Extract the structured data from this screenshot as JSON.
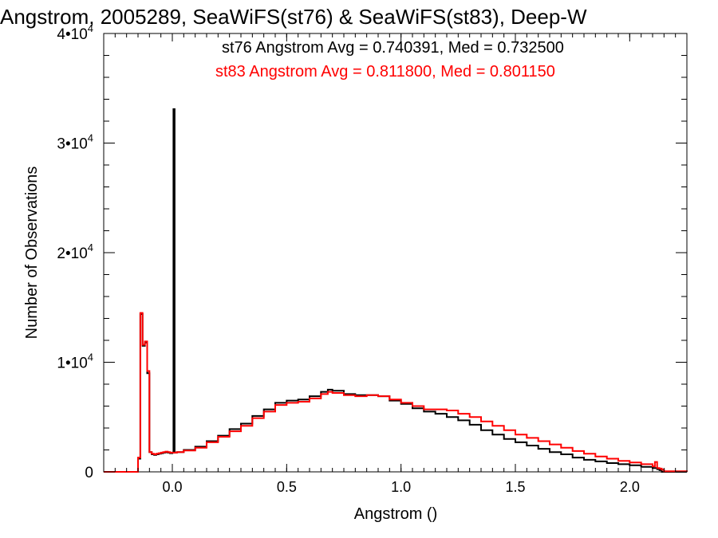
{
  "chart_data": {
    "type": "line",
    "title": "Angstrom, 2005289, SeaWiFS(st76) & SeaWiFS(st83), Deep-W",
    "xlabel": "Angstrom ()",
    "ylabel": "Number of Observations",
    "xlim": [
      -0.3,
      2.25
    ],
    "ylim": [
      0,
      40000
    ],
    "x_ticks": [
      0.0,
      0.5,
      1.0,
      1.5,
      2.0
    ],
    "x_tick_labels": [
      "0.0",
      "0.5",
      "1.0",
      "1.5",
      "2.0"
    ],
    "y_ticks": [
      0,
      10000,
      20000,
      30000,
      40000
    ],
    "y_tick_labels": [
      {
        "mantissa": "0",
        "exponent": ""
      },
      {
        "mantissa": "1•10",
        "exponent": "4"
      },
      {
        "mantissa": "2•10",
        "exponent": "4"
      },
      {
        "mantissa": "3•10",
        "exponent": "4"
      },
      {
        "mantissa": "4•10",
        "exponent": "4"
      }
    ],
    "annotations": [
      {
        "text": "st76 Angstrom Avg = 0.740391, Med = 0.732500",
        "color": "#000000"
      },
      {
        "text": "st83 Angstrom Avg = 0.811800, Med = 0.801150",
        "color": "#ff0000"
      }
    ],
    "series": [
      {
        "color": "#000000",
        "x": [
          -0.3,
          -0.16,
          -0.15,
          -0.14,
          -0.13,
          -0.12,
          -0.11,
          -0.1,
          -0.09,
          -0.08,
          -0.07,
          -0.06,
          -0.05,
          -0.04,
          -0.03,
          -0.02,
          -0.01,
          0.0,
          0.005,
          0.01,
          0.02,
          0.05,
          0.1,
          0.15,
          0.2,
          0.25,
          0.3,
          0.35,
          0.4,
          0.45,
          0.5,
          0.55,
          0.6,
          0.65,
          0.68,
          0.7,
          0.75,
          0.8,
          0.85,
          0.9,
          0.95,
          1.0,
          1.05,
          1.1,
          1.15,
          1.2,
          1.25,
          1.3,
          1.35,
          1.4,
          1.45,
          1.5,
          1.55,
          1.6,
          1.65,
          1.7,
          1.75,
          1.8,
          1.85,
          1.9,
          1.95,
          2.0,
          2.05,
          2.1,
          2.12,
          2.13,
          2.14,
          2.15,
          2.25
        ],
        "values": [
          0,
          0,
          1200,
          14400,
          11500,
          11800,
          9000,
          1800,
          1600,
          1550,
          1600,
          1650,
          1700,
          1750,
          1800,
          1750,
          1700,
          1750,
          33100,
          1750,
          1800,
          2000,
          2300,
          2800,
          3300,
          3900,
          4400,
          5100,
          5700,
          6300,
          6500,
          6600,
          6900,
          7300,
          7500,
          7400,
          7100,
          7000,
          7000,
          6900,
          6500,
          6200,
          5800,
          5500,
          5300,
          5000,
          4700,
          4300,
          3800,
          3400,
          3000,
          2700,
          2400,
          2100,
          1800,
          1600,
          1300,
          1100,
          950,
          800,
          700,
          600,
          450,
          350,
          250,
          150,
          0,
          0,
          0
        ]
      },
      {
        "color": "#ff0000",
        "x": [
          -0.3,
          -0.16,
          -0.15,
          -0.14,
          -0.13,
          -0.12,
          -0.11,
          -0.1,
          -0.09,
          -0.08,
          -0.07,
          -0.06,
          -0.05,
          -0.04,
          -0.03,
          -0.02,
          -0.01,
          0.0,
          0.02,
          0.05,
          0.1,
          0.15,
          0.2,
          0.25,
          0.3,
          0.35,
          0.4,
          0.45,
          0.5,
          0.55,
          0.6,
          0.65,
          0.68,
          0.7,
          0.75,
          0.8,
          0.85,
          0.9,
          0.95,
          1.0,
          1.05,
          1.1,
          1.15,
          1.2,
          1.25,
          1.3,
          1.35,
          1.4,
          1.45,
          1.5,
          1.55,
          1.6,
          1.65,
          1.7,
          1.75,
          1.8,
          1.85,
          1.9,
          1.95,
          2.0,
          2.05,
          2.1,
          2.11,
          2.12,
          2.13,
          2.14,
          2.15,
          2.25
        ],
        "values": [
          0,
          0,
          1300,
          14500,
          11600,
          11900,
          9200,
          1800,
          1650,
          1600,
          1650,
          1700,
          1750,
          1800,
          1850,
          1800,
          1750,
          1750,
          1800,
          1950,
          2200,
          2700,
          3200,
          3700,
          4200,
          4900,
          5500,
          6100,
          6300,
          6400,
          6700,
          7100,
          7300,
          7200,
          7000,
          6900,
          7000,
          6900,
          6600,
          6300,
          6000,
          5700,
          5700,
          5600,
          5300,
          5000,
          4600,
          4200,
          3800,
          3400,
          3100,
          2800,
          2500,
          2200,
          1900,
          1650,
          1400,
          1200,
          1000,
          850,
          700,
          500,
          900,
          350,
          300,
          200,
          50,
          0
        ]
      }
    ]
  }
}
